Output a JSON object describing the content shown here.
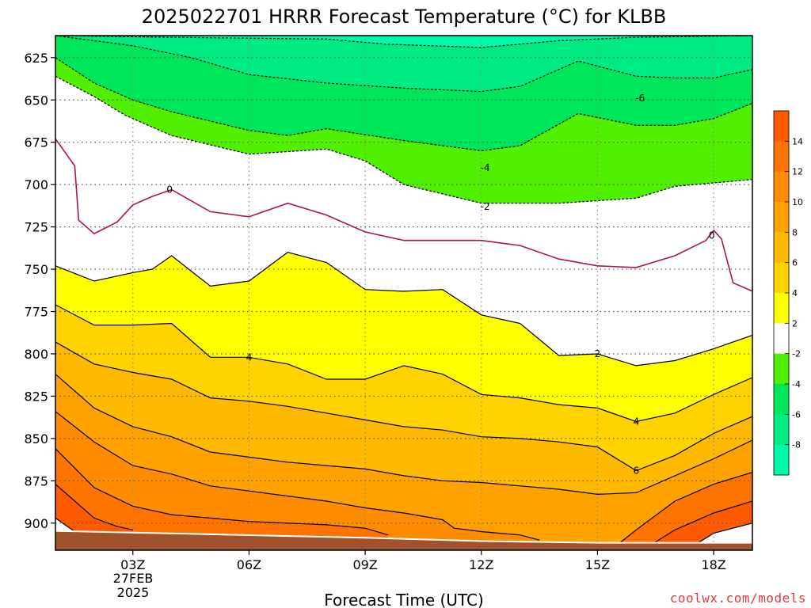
{
  "chart_data": {
    "type": "contour",
    "title": "2025022701 HRRR Forecast Temperature (°C) for KLBB",
    "xlabel": "Forecast Time (UTC)",
    "ylabel": "",
    "x_ticks": [
      {
        "hour": 3,
        "label": "03Z"
      },
      {
        "hour": 6,
        "label": "06Z"
      },
      {
        "hour": 9,
        "label": "09Z"
      },
      {
        "hour": 12,
        "label": "12Z"
      },
      {
        "hour": 15,
        "label": "15Z"
      },
      {
        "hour": 18,
        "label": "18Z"
      }
    ],
    "date_label": [
      "27FEB",
      "2025"
    ],
    "xlim": [
      1,
      19
    ],
    "y_ticks": [
      625,
      650,
      675,
      700,
      725,
      750,
      775,
      800,
      825,
      850,
      875,
      900
    ],
    "ylim": [
      612,
      916
    ],
    "grid": true,
    "colorbar": {
      "ticks": [
        "14",
        "12",
        "10",
        "8",
        "6",
        "4",
        "2",
        "-2",
        "-4",
        "-6",
        "-8"
      ],
      "bins": [
        {
          "range": [
            14,
            16
          ],
          "color": "#ff5a00"
        },
        {
          "range": [
            12,
            14
          ],
          "color": "#ff7400"
        },
        {
          "range": [
            10,
            12
          ],
          "color": "#ff8c00"
        },
        {
          "range": [
            8,
            10
          ],
          "color": "#ffa200"
        },
        {
          "range": [
            6,
            8
          ],
          "color": "#ffb900"
        },
        {
          "range": [
            4,
            6
          ],
          "color": "#ffd200"
        },
        {
          "range": [
            2,
            4
          ],
          "color": "#ffff00"
        },
        {
          "range": [
            -2,
            2
          ],
          "color": "#ffffff"
        },
        {
          "range": [
            -4,
            -2
          ],
          "color": "#50f000"
        },
        {
          "range": [
            -6,
            -4
          ],
          "color": "#00e65a"
        },
        {
          "range": [
            -8,
            -6
          ],
          "color": "#00ea82"
        },
        {
          "range": [
            -10,
            -8
          ],
          "color": "#00faaa"
        }
      ]
    },
    "ground_color": "#a0522d",
    "contours": [
      {
        "level": -8,
        "color": "#000000",
        "dashed": true,
        "label": "",
        "points": [
          [
            1,
            612
          ],
          [
            4,
            613
          ],
          [
            8,
            614
          ],
          [
            9.5,
            617
          ],
          [
            12,
            619
          ],
          [
            14,
            615
          ],
          [
            16,
            613
          ],
          [
            19,
            612
          ]
        ]
      },
      {
        "level": -6,
        "color": "#000000",
        "dashed": true,
        "label": "-6",
        "label_at": [
          16.1,
          649
        ],
        "points": [
          [
            1,
            612
          ],
          [
            3,
            618
          ],
          [
            4.5,
            625
          ],
          [
            6,
            635
          ],
          [
            8,
            640
          ],
          [
            10,
            643
          ],
          [
            12,
            645
          ],
          [
            13,
            642
          ],
          [
            14.5,
            627
          ],
          [
            16,
            636
          ],
          [
            17,
            637
          ],
          [
            18,
            637
          ],
          [
            19,
            632
          ]
        ]
      },
      {
        "level": -4,
        "color": "#000000",
        "dashed": true,
        "label": "-4",
        "label_at": [
          12.1,
          690
        ],
        "points": [
          [
            1,
            625
          ],
          [
            2,
            640
          ],
          [
            3,
            650
          ],
          [
            4,
            657
          ],
          [
            6,
            668
          ],
          [
            7,
            671
          ],
          [
            8,
            667
          ],
          [
            10,
            674
          ],
          [
            12,
            680
          ],
          [
            13,
            677
          ],
          [
            14.5,
            658
          ],
          [
            16,
            665
          ],
          [
            17,
            665
          ],
          [
            18,
            661
          ],
          [
            19,
            652
          ]
        ]
      },
      {
        "level": -2,
        "color": "#000000",
        "dashed": true,
        "label": "-2",
        "label_at": [
          12.1,
          713
        ],
        "points": [
          [
            1,
            636
          ],
          [
            2,
            648
          ],
          [
            2.8,
            659
          ],
          [
            4,
            671
          ],
          [
            6,
            682
          ],
          [
            8,
            679
          ],
          [
            9,
            686
          ],
          [
            10,
            700
          ],
          [
            12,
            711
          ],
          [
            14,
            711
          ],
          [
            16,
            708
          ],
          [
            17,
            701
          ],
          [
            18,
            699
          ],
          [
            19,
            697
          ]
        ]
      },
      {
        "level": 0,
        "color": "#b0105a",
        "dashed": false,
        "label": "0",
        "label_at": [
          3.95,
          703
        ],
        "label2": "0",
        "label2_at": [
          17.95,
          730
        ],
        "points": [
          [
            1,
            673
          ],
          [
            1.5,
            689
          ],
          [
            1.6,
            721
          ],
          [
            2,
            729
          ],
          [
            2.6,
            722
          ],
          [
            3,
            712
          ],
          [
            3.5,
            707
          ],
          [
            4,
            703
          ],
          [
            5,
            716
          ],
          [
            6,
            719
          ],
          [
            7,
            711
          ],
          [
            8,
            718
          ],
          [
            9,
            728
          ],
          [
            10,
            733
          ],
          [
            12,
            733
          ],
          [
            13,
            736
          ],
          [
            14,
            744
          ],
          [
            15,
            748
          ],
          [
            16,
            749
          ],
          [
            17,
            742
          ],
          [
            17.8,
            733
          ],
          [
            18,
            727
          ],
          [
            18.2,
            732
          ],
          [
            18.5,
            758
          ],
          [
            19,
            763
          ]
        ]
      },
      {
        "level": 2,
        "color": "#000000",
        "dashed": false,
        "label": "2",
        "label_at": [
          15.0,
          800
        ],
        "points": [
          [
            1,
            748
          ],
          [
            2,
            757
          ],
          [
            3,
            752
          ],
          [
            3.5,
            750
          ],
          [
            4,
            742
          ],
          [
            5,
            760
          ],
          [
            6,
            757
          ],
          [
            7,
            740
          ],
          [
            8,
            746
          ],
          [
            9,
            762
          ],
          [
            10,
            763
          ],
          [
            11,
            762
          ],
          [
            12,
            777
          ],
          [
            13,
            782
          ],
          [
            14,
            801
          ],
          [
            15,
            800
          ],
          [
            16,
            807
          ],
          [
            17,
            804
          ],
          [
            18,
            797
          ],
          [
            19,
            789
          ]
        ]
      },
      {
        "level": 4,
        "color": "#000000",
        "dashed": false,
        "label": "4",
        "label_at": [
          6.0,
          802
        ],
        "label2": "4",
        "label2_at": [
          16.0,
          840
        ],
        "points": [
          [
            1,
            771
          ],
          [
            2,
            783
          ],
          [
            3,
            783
          ],
          [
            4,
            782
          ],
          [
            5,
            802
          ],
          [
            6,
            802
          ],
          [
            7,
            806
          ],
          [
            8,
            815
          ],
          [
            9,
            815
          ],
          [
            10,
            807
          ],
          [
            11,
            812
          ],
          [
            12,
            824
          ],
          [
            13,
            826
          ],
          [
            14,
            830
          ],
          [
            15,
            832
          ],
          [
            16,
            840
          ],
          [
            17,
            835
          ],
          [
            18,
            824
          ],
          [
            19,
            814
          ]
        ]
      },
      {
        "level": 6,
        "color": "#000000",
        "dashed": false,
        "label": "6",
        "label_at": [
          16.0,
          869
        ],
        "points": [
          [
            1,
            793
          ],
          [
            2,
            806
          ],
          [
            3,
            811
          ],
          [
            4,
            815
          ],
          [
            5,
            826
          ],
          [
            6,
            828
          ],
          [
            7,
            831
          ],
          [
            8,
            835
          ],
          [
            9,
            839
          ],
          [
            10,
            843
          ],
          [
            11,
            845
          ],
          [
            12,
            849
          ],
          [
            13,
            850
          ],
          [
            14,
            852
          ],
          [
            15,
            855
          ],
          [
            16,
            869
          ],
          [
            17,
            860
          ],
          [
            18,
            847
          ],
          [
            19,
            837
          ]
        ]
      },
      {
        "level": 8,
        "color": "#000000",
        "dashed": false,
        "label": "",
        "points": [
          [
            1,
            812
          ],
          [
            2,
            832
          ],
          [
            3,
            843
          ],
          [
            4,
            849
          ],
          [
            5,
            858
          ],
          [
            6,
            861
          ],
          [
            7,
            864
          ],
          [
            8,
            866
          ],
          [
            9,
            868
          ],
          [
            10,
            872
          ],
          [
            11,
            875
          ],
          [
            12,
            876
          ],
          [
            13,
            878
          ],
          [
            14,
            880
          ],
          [
            15,
            883
          ],
          [
            16,
            882
          ],
          [
            17,
            872
          ],
          [
            18,
            862
          ],
          [
            19,
            851
          ]
        ]
      },
      {
        "level": 10,
        "color": "#000000",
        "dashed": false,
        "label": "",
        "points": [
          [
            1,
            834
          ],
          [
            2,
            852
          ],
          [
            3,
            866
          ],
          [
            4,
            871
          ],
          [
            5,
            878
          ],
          [
            6,
            881
          ],
          [
            7,
            884
          ],
          [
            8,
            887
          ],
          [
            9,
            891
          ],
          [
            10,
            894
          ],
          [
            11,
            898
          ],
          [
            11.3,
            903
          ],
          [
            12,
            905
          ],
          [
            13,
            907
          ],
          [
            13.5,
            910
          ]
        ]
      },
      {
        "level": 12,
        "color": "#000000",
        "dashed": false,
        "label": "",
        "points": [
          [
            1,
            856
          ],
          [
            2,
            879
          ],
          [
            3,
            890
          ],
          [
            4,
            895
          ],
          [
            5,
            897
          ],
          [
            6,
            899
          ],
          [
            7,
            900
          ],
          [
            8,
            901
          ],
          [
            9,
            903
          ],
          [
            9.6,
            907
          ]
        ]
      },
      {
        "level": 12,
        "color": "#000000",
        "dashed": false,
        "label": "",
        "points": [
          [
            15.5,
            913
          ],
          [
            16,
            904
          ],
          [
            17,
            887
          ],
          [
            18,
            877
          ],
          [
            19,
            870
          ]
        ]
      },
      {
        "level": 14,
        "color": "#000000",
        "dashed": false,
        "label": "",
        "points": [
          [
            1,
            877
          ],
          [
            2,
            897
          ],
          [
            2.6,
            902
          ],
          [
            3,
            904
          ]
        ]
      },
      {
        "level": 14,
        "color": "#000000",
        "dashed": false,
        "label": "",
        "points": [
          [
            16.3,
            914
          ],
          [
            17,
            904
          ],
          [
            18,
            894
          ],
          [
            19,
            887
          ]
        ]
      },
      {
        "level": 16,
        "color": "#000000",
        "dashed": false,
        "label": "",
        "points": [
          [
            1,
            897
          ],
          [
            1.5,
            905
          ],
          [
            1.6,
            906
          ]
        ]
      },
      {
        "level": 16,
        "color": "#000000",
        "dashed": false,
        "label": "",
        "points": [
          [
            17.5,
            913
          ],
          [
            18,
            906
          ],
          [
            19,
            900
          ]
        ]
      }
    ],
    "surface": [
      [
        1,
        905
      ],
      [
        3,
        906
      ],
      [
        5,
        907
      ],
      [
        9,
        909
      ],
      [
        12,
        911
      ],
      [
        15,
        912
      ],
      [
        19,
        912
      ]
    ]
  },
  "watermark": "coolwx.com/models"
}
